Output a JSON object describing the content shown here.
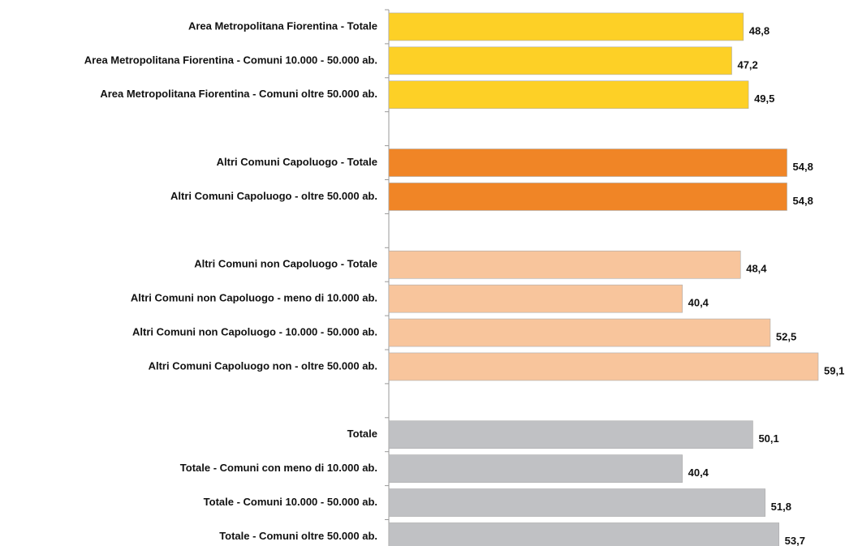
{
  "chart_data": {
    "type": "bar",
    "orientation": "horizontal",
    "categories": [
      "Area Metropolitana Fiorentina - Totale",
      "Area Metropolitana Fiorentina - Comuni 10.000 - 50.000 ab.",
      "Area Metropolitana Fiorentina - Comuni oltre 50.000 ab.",
      null,
      "Altri Comuni Capoluogo  - Totale",
      "Altri Comuni Capoluogo - oltre 50.000 ab.",
      null,
      "Altri Comuni non Capoluogo - Totale",
      "Altri Comuni non Capoluogo - meno di  10.000 ab.",
      "Altri Comuni non Capoluogo  - 10.000 - 50.000 ab.",
      "Altri Comuni Capoluogo non - oltre 50.000 ab.",
      null,
      "Totale",
      "Totale - Comuni con meno di  10.000 ab.",
      "Totale - Comuni 10.000 - 50.000 ab.",
      "Totale - Comuni oltre 50.000 ab."
    ],
    "values": [
      48.8,
      47.2,
      49.5,
      null,
      54.8,
      54.8,
      null,
      48.4,
      40.4,
      52.5,
      59.1,
      null,
      50.1,
      40.4,
      51.8,
      53.7
    ],
    "value_labels": [
      "48,8",
      "47,2",
      "49,5",
      null,
      "54,8",
      "54,8",
      null,
      "48,4",
      "40,4",
      "52,5",
      "59,1",
      null,
      "50,1",
      "40,4",
      "51,8",
      "53,7"
    ],
    "colors": [
      "#fdd026",
      "#fdd026",
      "#fdd026",
      null,
      "#f08526",
      "#f08526",
      null,
      "#f8c59c",
      "#f8c59c",
      "#f8c59c",
      "#f8c59c",
      null,
      "#c0c1c4",
      "#c0c1c4",
      "#c0c1c4",
      "#c0c1c4"
    ]
  }
}
